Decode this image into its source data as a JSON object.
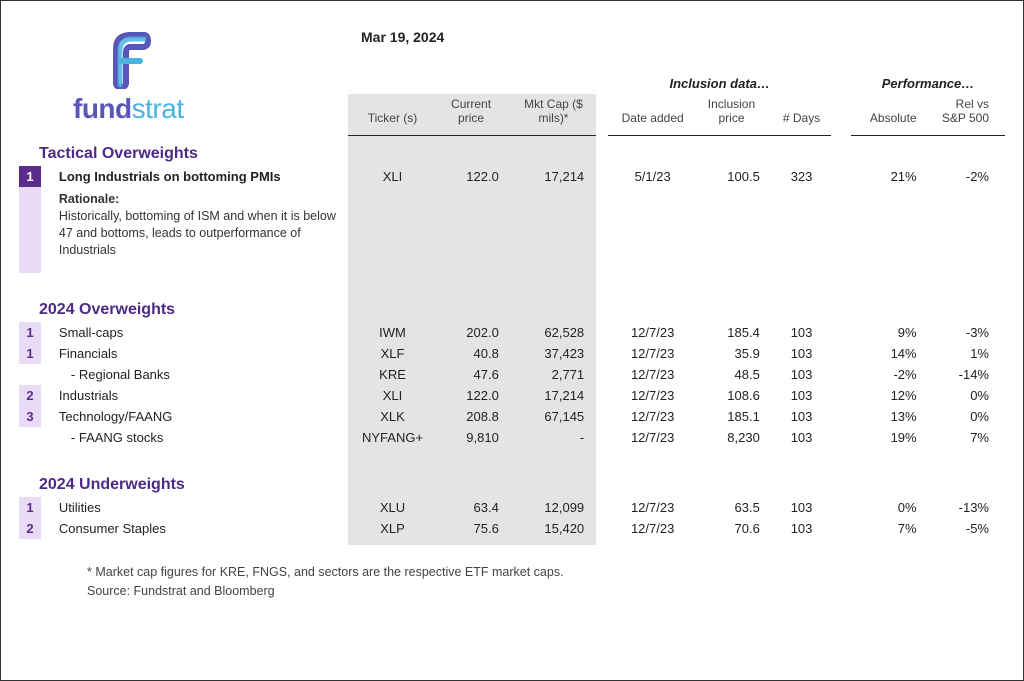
{
  "date": "Mar 19, 2024",
  "logo": {
    "fund": "fund",
    "strat": "strat"
  },
  "group_headers": {
    "inclusion": "Inclusion data…",
    "performance": "Performance…"
  },
  "col_headers": {
    "ticker": "Ticker (s)",
    "cur_price": "Current price",
    "mkt_cap": "Mkt Cap ($ mils)*",
    "date_added": "Date added",
    "inc_price": "Inclusion price",
    "days": "# Days",
    "absolute": "Absolute",
    "rel": "Rel vs S&P 500"
  },
  "sections": {
    "tactical": "Tactical Overweights",
    "ow2024": "2024 Overweights",
    "uw2024": "2024 Underweights"
  },
  "tactical_rows": [
    {
      "num": "1",
      "name": "Long Industrials on bottoming PMIs",
      "ticker": "XLI",
      "cur": "122.0",
      "mkt": "17,214",
      "date": "5/1/23",
      "inc": "100.5",
      "days": "323",
      "abs": "21%",
      "rel": "-2%"
    }
  ],
  "rationale": {
    "label": "Rationale:",
    "text": "Historically, bottoming of ISM and when it is below 47 and bottoms, leads to outperformance of Industrials"
  },
  "ow_rows": [
    {
      "num": "1",
      "name": "Small-caps",
      "ticker": "IWM",
      "cur": "202.0",
      "mkt": "62,528",
      "date": "12/7/23",
      "inc": "185.4",
      "days": "103",
      "abs": "9%",
      "rel": "-3%"
    },
    {
      "num": "1",
      "name": "Financials",
      "ticker": "XLF",
      "cur": "40.8",
      "mkt": "37,423",
      "date": "12/7/23",
      "inc": "35.9",
      "days": "103",
      "abs": "14%",
      "rel": "1%"
    },
    {
      "num": "",
      "name": "  - Regional Banks",
      "ticker": "KRE",
      "cur": "47.6",
      "mkt": "2,771",
      "date": "12/7/23",
      "inc": "48.5",
      "days": "103",
      "abs": "-2%",
      "rel": "-14%"
    },
    {
      "num": "2",
      "name": "Industrials",
      "ticker": "XLI",
      "cur": "122.0",
      "mkt": "17,214",
      "date": "12/7/23",
      "inc": "108.6",
      "days": "103",
      "abs": "12%",
      "rel": "0%"
    },
    {
      "num": "3",
      "name": "Technology/FAANG",
      "ticker": "XLK",
      "cur": "208.8",
      "mkt": "67,145",
      "date": "12/7/23",
      "inc": "185.1",
      "days": "103",
      "abs": "13%",
      "rel": "0%"
    },
    {
      "num": "",
      "name": "  - FAANG stocks",
      "ticker": "NYFANG+",
      "cur": "9,810",
      "mkt": "-",
      "date": "12/7/23",
      "inc": "8,230",
      "days": "103",
      "abs": "19%",
      "rel": "7%"
    }
  ],
  "uw_rows": [
    {
      "num": "1",
      "name": "Utilities",
      "ticker": "XLU",
      "cur": "63.4",
      "mkt": "12,099",
      "date": "12/7/23",
      "inc": "63.5",
      "days": "103",
      "abs": "0%",
      "rel": "-13%"
    },
    {
      "num": "2",
      "name": "Consumer Staples",
      "ticker": "XLP",
      "cur": "75.6",
      "mkt": "15,420",
      "date": "12/7/23",
      "inc": "70.6",
      "days": "103",
      "abs": "7%",
      "rel": "-5%"
    }
  ],
  "footnote": {
    "line1": "* Market cap figures for KRE, FNGS, and sectors are the respective ETF market caps.",
    "line2": "Source: Fundstrat and Bloomberg"
  },
  "colors": {
    "purple": "#4c2a85",
    "badge_dark": "#5a2d8c",
    "badge_light": "#e9daf5",
    "grey_col": "#e4e4e4",
    "logo_purple": "#5856b6",
    "logo_blue": "#4ab3e0"
  }
}
